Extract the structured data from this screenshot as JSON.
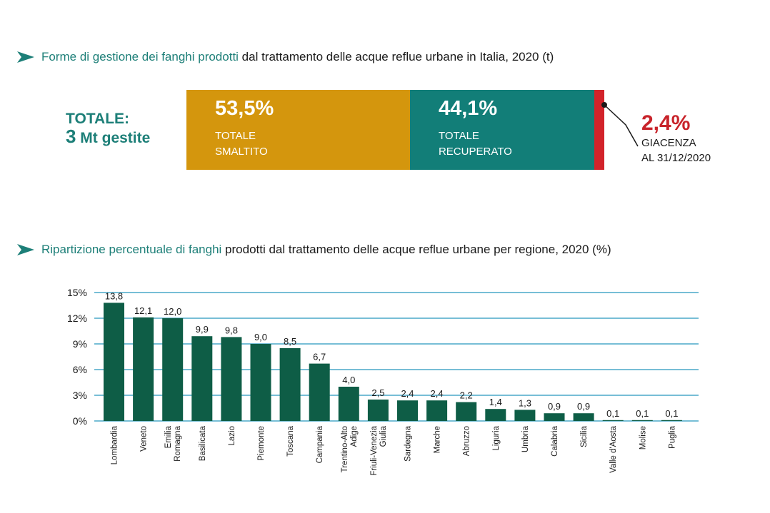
{
  "header1": {
    "highlight": "Forme di gestione dei fanghi prodotti",
    "rest": " dal trattamento delle acque reflue urbane in Italia, 2020 (t)"
  },
  "total": {
    "line1": "TOTALE:",
    "number": "3",
    "unit": " Mt gestite"
  },
  "stacked": {
    "segments": [
      {
        "pct": "53,5%",
        "label1": "TOTALE",
        "label2": "SMALTITO",
        "value": 53.5,
        "color": "#d4960d"
      },
      {
        "pct": "44,1%",
        "label1": "TOTALE",
        "label2": "RECUPERATO",
        "value": 44.1,
        "color": "#127e78"
      },
      {
        "pct": "2,4%",
        "label1": "GIACENZA",
        "label2": "AL 31/12/2020",
        "value": 2.4,
        "color": "#d2232a"
      }
    ]
  },
  "header2": {
    "highlight": "Ripartizione percentuale di fanghi",
    "rest": " prodotti dal trattamento delle acque reflue urbane per regione, 2020 (%)"
  },
  "colors": {
    "accent": "#1d7f78",
    "bar": "#0e5d46",
    "grid": "#4aa9c9",
    "red": "#c8232a"
  },
  "chart_data": {
    "type": "bar",
    "ylim": [
      0,
      15
    ],
    "yticks": [
      0,
      3,
      6,
      9,
      12,
      15
    ],
    "ytick_labels": [
      "0%",
      "3%",
      "6%",
      "9%",
      "12%",
      "15%"
    ],
    "grid": true,
    "categories": [
      [
        "Lombardia"
      ],
      [
        "Veneto"
      ],
      [
        "Emilia",
        "Romagna"
      ],
      [
        "Basilicata"
      ],
      [
        "Lazio"
      ],
      [
        "Piemonte"
      ],
      [
        "Toscana"
      ],
      [
        "Campania"
      ],
      [
        "Trentino-Alto",
        "Adige"
      ],
      [
        "Friuli-Venezia",
        "Giulia"
      ],
      [
        "Sardegna"
      ],
      [
        "Marche"
      ],
      [
        "Abruzzo"
      ],
      [
        "Liguria"
      ],
      [
        "Umbria"
      ],
      [
        "Calabria"
      ],
      [
        "Sicilia"
      ],
      [
        "Valle d'Aosta"
      ],
      [
        "Molise"
      ],
      [
        "Puglia"
      ]
    ],
    "values": [
      13.8,
      12.1,
      12.0,
      9.9,
      9.8,
      9.0,
      8.5,
      6.7,
      4.0,
      2.5,
      2.4,
      2.4,
      2.2,
      1.4,
      1.3,
      0.9,
      0.9,
      0.1,
      0.1,
      0.1
    ],
    "value_labels": [
      "13,8",
      "12,1",
      "12,0",
      "9,9",
      "9,8",
      "9,0",
      "8,5",
      "6,7",
      "4,0",
      "2,5",
      "2,4",
      "2,4",
      "2,2",
      "1,4",
      "1,3",
      "0,9",
      "0,9",
      "0,1",
      "0,1",
      "0,1"
    ]
  }
}
